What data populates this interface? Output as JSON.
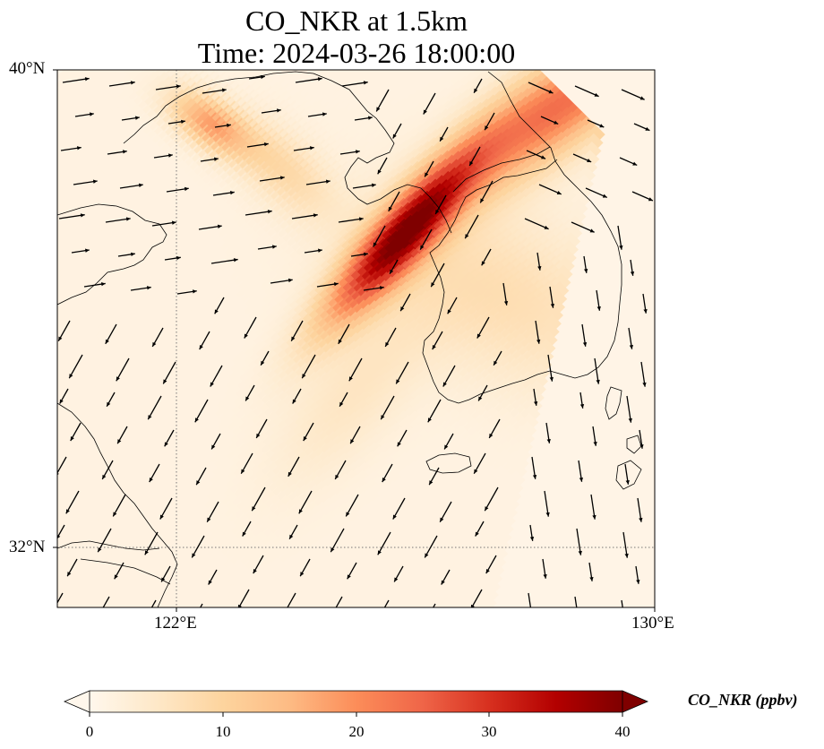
{
  "title": "CO_NKR at 1.5km",
  "subtitle": "Time: 2024-03-26 18:00:00",
  "map": {
    "lon_range": [
      119.6,
      130
    ],
    "lat_range": [
      31,
      40
    ],
    "lat_labels": [
      "40°N",
      "32°N"
    ],
    "lon_labels": [
      "122°E",
      "130°E"
    ],
    "gridlines": "dotted at 122°E and 32°N",
    "field": "CO_NKR concentration shaded (OrRd colormap)",
    "overlays": [
      "coastlines",
      "wind vectors"
    ]
  },
  "colorbar": {
    "label": "CO_NKR (ppbv)",
    "ticks": [
      "0",
      "10",
      "20",
      "30",
      "40"
    ],
    "min": 0,
    "max": 40,
    "extend": "both",
    "colors": [
      "#fff7ec",
      "#fee8c8",
      "#fdd49e",
      "#fdbb84",
      "#fc8d59",
      "#ef6548",
      "#d7301f",
      "#b30000",
      "#7f0000"
    ]
  }
}
